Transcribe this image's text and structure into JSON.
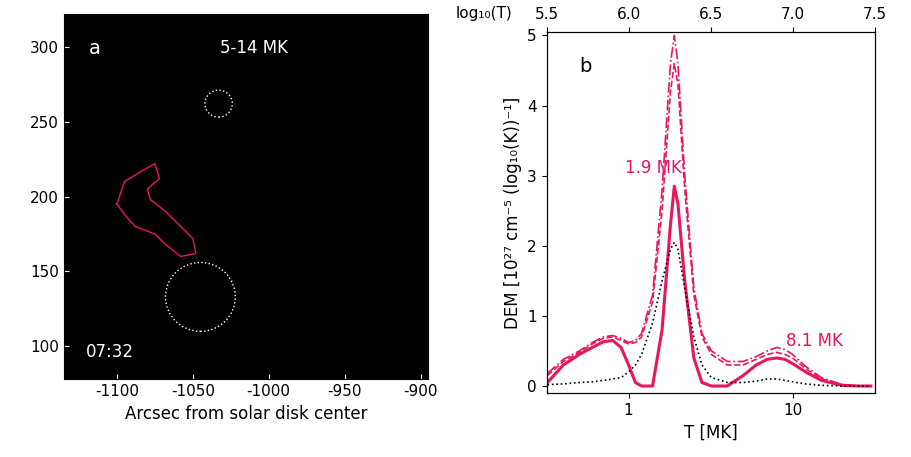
{
  "chart_data": [
    {
      "type": "image",
      "panel_label": "a",
      "temperature_label": "5-14 MK",
      "time_label": "07:32",
      "xlabel": "Arcsec from solar disk center",
      "xlim": [
        -1135,
        -895
      ],
      "ylim": [
        78,
        322
      ],
      "xticks": [
        -1100,
        -1050,
        -1000,
        -950,
        -900
      ],
      "yticks": [
        100,
        150,
        200,
        250,
        300
      ],
      "circles": [
        {
          "x": -1033,
          "y": 262,
          "r": 9,
          "color": "#ffffff",
          "line_style": "dotted"
        },
        {
          "x": -1045,
          "y": 133,
          "r": 23,
          "color": "#ffffff",
          "line_style": "dotted"
        }
      ],
      "contour": {
        "color": "#e8175d",
        "x": [
          -1100,
          -1095,
          -1082,
          -1075,
          -1072,
          -1080,
          -1078,
          -1068,
          -1060,
          -1050,
          -1048,
          -1058,
          -1068,
          -1075,
          -1088,
          -1095,
          -1100
        ],
        "y": [
          195,
          210,
          218,
          222,
          212,
          205,
          198,
          190,
          182,
          172,
          162,
          160,
          168,
          175,
          180,
          188,
          195
        ]
      }
    },
    {
      "type": "line",
      "panel_label": "b",
      "xlabel": "T [MK]",
      "ylabel": "DEM [10²⁷ cm⁻⁵ (log₁₀(K))⁻¹]",
      "x2label": "log₁₀(T)",
      "log": "x",
      "xlim": [
        0.3162,
        31.62
      ],
      "ylim": [
        -0.1,
        5.05
      ],
      "xticks": [
        1,
        10
      ],
      "yticks": [
        0,
        1,
        2,
        3,
        4,
        5
      ],
      "x2lim": [
        5.5,
        7.5
      ],
      "x2ticks": [
        {
          "value": 5.5,
          "label": "5.5"
        },
        {
          "value": 6,
          "label": "6.0"
        },
        {
          "value": 6.5,
          "label": "6.5"
        },
        {
          "value": 7,
          "label": "7.0"
        },
        {
          "value": 7.5,
          "label": "7.5"
        }
      ],
      "annotations": [
        "1.9 MK",
        "8.1 MK"
      ],
      "annotation_color": "#e8175d",
      "x": [
        0.32,
        0.4,
        0.5,
        0.6,
        0.7,
        0.8,
        0.9,
        1.0,
        1.1,
        1.2,
        1.4,
        1.6,
        1.8,
        1.9,
        2.0,
        2.2,
        2.5,
        2.8,
        3.2,
        4,
        5,
        6,
        7,
        8,
        9,
        10,
        12,
        15,
        20,
        25,
        30
      ],
      "series": [
        {
          "color": "#e8175d",
          "line_style": "solid",
          "values": [
            0.05,
            0.3,
            0.45,
            0.55,
            0.63,
            0.65,
            0.55,
            0.3,
            0.05,
            0,
            0,
            0.8,
            2.3,
            2.85,
            2.6,
            1.5,
            0.4,
            0.05,
            0,
            0,
            0.15,
            0.3,
            0.38,
            0.4,
            0.38,
            0.32,
            0.2,
            0.08,
            0.01,
            0,
            0
          ]
        },
        {
          "color": "#e8175d",
          "line_style": "dashed",
          "values": [
            0.15,
            0.35,
            0.48,
            0.6,
            0.68,
            0.7,
            0.65,
            0.6,
            0.62,
            0.7,
            1.2,
            2.5,
            4.2,
            4.6,
            4.3,
            2.8,
            1.3,
            0.7,
            0.45,
            0.3,
            0.3,
            0.38,
            0.45,
            0.48,
            0.45,
            0.4,
            0.25,
            0.1,
            0.02,
            0,
            0
          ]
        },
        {
          "color": "#e8175d",
          "line_style": "dashdot",
          "values": [
            0.18,
            0.38,
            0.5,
            0.62,
            0.7,
            0.72,
            0.68,
            0.62,
            0.65,
            0.75,
            1.3,
            2.8,
            4.6,
            5.0,
            4.6,
            3.0,
            1.4,
            0.75,
            0.5,
            0.35,
            0.35,
            0.42,
            0.5,
            0.55,
            0.52,
            0.45,
            0.28,
            0.12,
            0.02,
            0,
            0
          ]
        },
        {
          "color": "#000000",
          "line_style": "dotted",
          "values": [
            0.02,
            0.03,
            0.05,
            0.06,
            0.08,
            0.1,
            0.12,
            0.2,
            0.3,
            0.45,
            0.9,
            1.5,
            1.95,
            2.05,
            1.95,
            1.4,
            0.7,
            0.3,
            0.12,
            0.05,
            0.05,
            0.07,
            0.1,
            0.1,
            0.08,
            0.06,
            0.03,
            0.01,
            0,
            0,
            0
          ]
        }
      ]
    }
  ]
}
